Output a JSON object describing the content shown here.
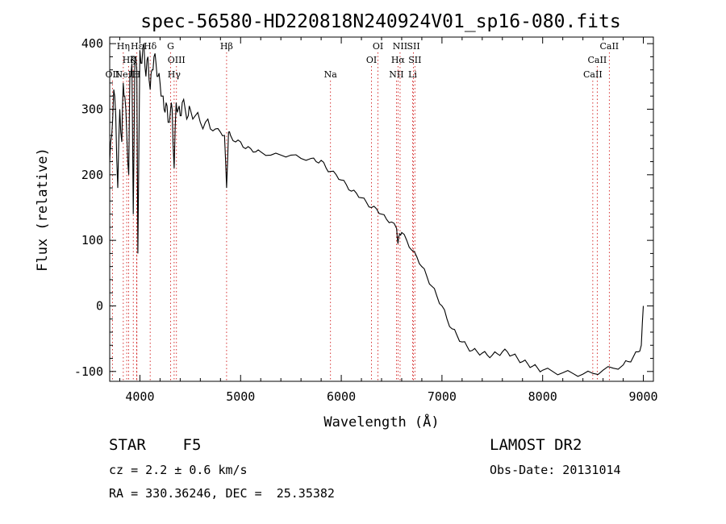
{
  "chart_data": {
    "type": "line",
    "title": "spec-56580-HD220818N240924V01_sp16-080.fits",
    "xlabel": "Wavelength (Å)",
    "ylabel": "Flux (relative)",
    "xlim": [
      3700,
      9100
    ],
    "ylim": [
      -115,
      410
    ],
    "xticks": [
      4000,
      5000,
      6000,
      7000,
      8000,
      9000
    ],
    "yticks": [
      -100,
      0,
      100,
      200,
      300,
      400
    ],
    "grid": false,
    "line_color": "#000000",
    "marker_color": "#cc0000",
    "spectral_lines": [
      {
        "label": "Hη",
        "wavelength": 3835,
        "row": 0
      },
      {
        "label": "Hζ",
        "wavelength": 3889,
        "row": 1
      },
      {
        "label": "OII",
        "wavelength": 3727,
        "row": 2
      },
      {
        "label": "Hε",
        "wavelength": 3970,
        "row": 0
      },
      {
        "label": "K",
        "wavelength": 3934,
        "row": 1
      },
      {
        "label": "H",
        "wavelength": 3969,
        "row": 2
      },
      {
        "label": "Hδ",
        "wavelength": 4102,
        "row": 0
      },
      {
        "label": "NeIII",
        "wavelength": 3869,
        "row": 2
      },
      {
        "label": "G",
        "wavelength": 4305,
        "row": 0
      },
      {
        "label": "OIII",
        "wavelength": 4363,
        "row": 1
      },
      {
        "label": "Hγ",
        "wavelength": 4340,
        "row": 2
      },
      {
        "label": "Hβ",
        "wavelength": 4861,
        "row": 0
      },
      {
        "label": "Na",
        "wavelength": 5893,
        "row": 2
      },
      {
        "label": "OI",
        "wavelength": 6364,
        "row": 0
      },
      {
        "label": "OI",
        "wavelength": 6300,
        "row": 1
      },
      {
        "label": "NII",
        "wavelength": 6584,
        "row": 0
      },
      {
        "label": "SII",
        "wavelength": 6717,
        "row": 0
      },
      {
        "label": "Hα",
        "wavelength": 6563,
        "row": 1
      },
      {
        "label": "SII",
        "wavelength": 6731,
        "row": 1
      },
      {
        "label": "NII",
        "wavelength": 6548,
        "row": 2
      },
      {
        "label": "Li",
        "wavelength": 6708,
        "row": 2
      },
      {
        "label": "CaII",
        "wavelength": 8662,
        "row": 0
      },
      {
        "label": "CaII",
        "wavelength": 8542,
        "row": 1
      },
      {
        "label": "CaII",
        "wavelength": 8498,
        "row": 2
      }
    ],
    "series": [
      {
        "x": [
          3700,
          3720,
          3740,
          3760,
          3780,
          3800,
          3820,
          3835,
          3850,
          3870,
          3889,
          3900,
          3920,
          3934,
          3950,
          3969,
          3980,
          4000,
          4020,
          4040,
          4060,
          4080,
          4102,
          4120,
          4140,
          4160,
          4180,
          4200,
          4220,
          4240,
          4260,
          4280,
          4305,
          4320,
          4340,
          4360,
          4380,
          4400,
          4420,
          4450,
          4480,
          4500,
          4550,
          4600,
          4650,
          4700,
          4750,
          4800,
          4840,
          4861,
          4880,
          4900,
          4950,
          5000,
          5050,
          5100,
          5150,
          5200,
          5300,
          5400,
          5500,
          5600,
          5700,
          5750,
          5800,
          5850,
          5893,
          5950,
          6000,
          6050,
          6100,
          6150,
          6200,
          6250,
          6300,
          6350,
          6400,
          6450,
          6500,
          6550,
          6563,
          6580,
          6600,
          6650,
          6700,
          6750,
          6800,
          6850,
          6900,
          6950,
          7000,
          7050,
          7100,
          7150,
          7200,
          7250,
          7300,
          7350,
          7400,
          7450,
          7500,
          7550,
          7600,
          7650,
          7700,
          7750,
          7800,
          7850,
          7900,
          7950,
          8000,
          8100,
          8200,
          8300,
          8400,
          8500,
          8600,
          8700,
          8800,
          8850,
          8900,
          8950,
          8980,
          9000
        ],
        "y": [
          220,
          260,
          330,
          290,
          180,
          300,
          250,
          340,
          320,
          260,
          200,
          350,
          370,
          140,
          380,
          360,
          80,
          390,
          370,
          400,
          350,
          380,
          330,
          360,
          380,
          370,
          350,
          340,
          320,
          300,
          310,
          280,
          300,
          300,
          210,
          310,
          300,
          290,
          310,
          300,
          290,
          300,
          290,
          280,
          280,
          270,
          270,
          265,
          260,
          180,
          265,
          260,
          250,
          250,
          240,
          240,
          235,
          235,
          230,
          230,
          230,
          225,
          225,
          220,
          222,
          210,
          205,
          200,
          192,
          185,
          175,
          172,
          165,
          158,
          150,
          148,
          140,
          132,
          128,
          118,
          95,
          110,
          112,
          100,
          85,
          75,
          60,
          45,
          30,
          15,
          0,
          -20,
          -35,
          -45,
          -55,
          -62,
          -68,
          -70,
          -72,
          -75,
          -75,
          -73,
          -70,
          -70,
          -75,
          -80,
          -85,
          -88,
          -92,
          -95,
          -98,
          -100,
          -102,
          -103,
          -104,
          -103,
          -98,
          -95,
          -90,
          -85,
          -78,
          -70,
          -60,
          0
        ]
      }
    ]
  },
  "footer": {
    "object": "STAR    F5",
    "survey": "LAMOST DR2",
    "cz": "cz = 2.2 ± 0.6 km/s",
    "obsdate": "Obs-Date: 20131014",
    "coords": "RA = 330.36246, DEC =  25.35382"
  }
}
